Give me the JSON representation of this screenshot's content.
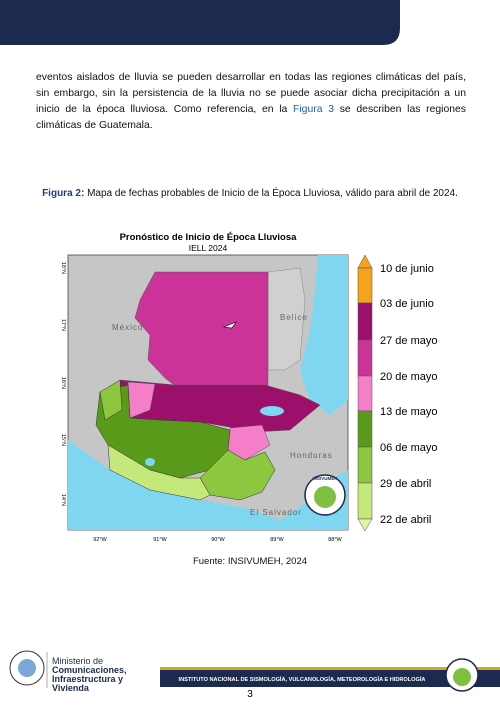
{
  "paragraph": {
    "text_before": "eventos aislados de lluvia se pueden desarrollar en todas las regiones climáticas del país, sin embargo, sin la persistencia de la lluvia no se puede asociar dicha precipitación a un inicio de la época lluviosa. Como referencia, en la",
    "link": "Figura 3",
    "text_after": "se describen las regiones climáticas de Guatemala."
  },
  "figure": {
    "label": "Figura 2:",
    "caption": "Mapa de fechas probables de Inicio de la Época Lluviosa, válido para abril de 2024.",
    "map": {
      "title": "Pronóstico de Inicio de Época Lluviosa",
      "subtitle": "IELL 2024",
      "country_labels": [
        "México",
        "Belice",
        "Honduras",
        "El Salvador"
      ],
      "lat_labels": [
        "18°N",
        "17°N",
        "16°N",
        "15°N",
        "14°N"
      ],
      "lon_labels": [
        "92°W",
        "91°W",
        "90°W",
        "89°W",
        "88°W"
      ],
      "logo_text": "INSIVUMEH",
      "legend": [
        "10 de junio",
        "03 de junio",
        "27 de mayo",
        "20 de mayo",
        "13 de mayo",
        "06 de mayo",
        "29 de abril",
        "22 de abril"
      ]
    },
    "source": "Fuente: INSIVUMEH, 2024"
  },
  "footer": {
    "ministry": [
      "Ministerio de",
      "Comunicaciones,",
      "Infraestructura y",
      "Vivienda"
    ],
    "institute": "INSTITUTO NACIONAL DE SISMOLOGÍA, VULCANOLOGÍA, METEOROLOGÍA E HIDROLOGÍA",
    "page_number": "3"
  }
}
